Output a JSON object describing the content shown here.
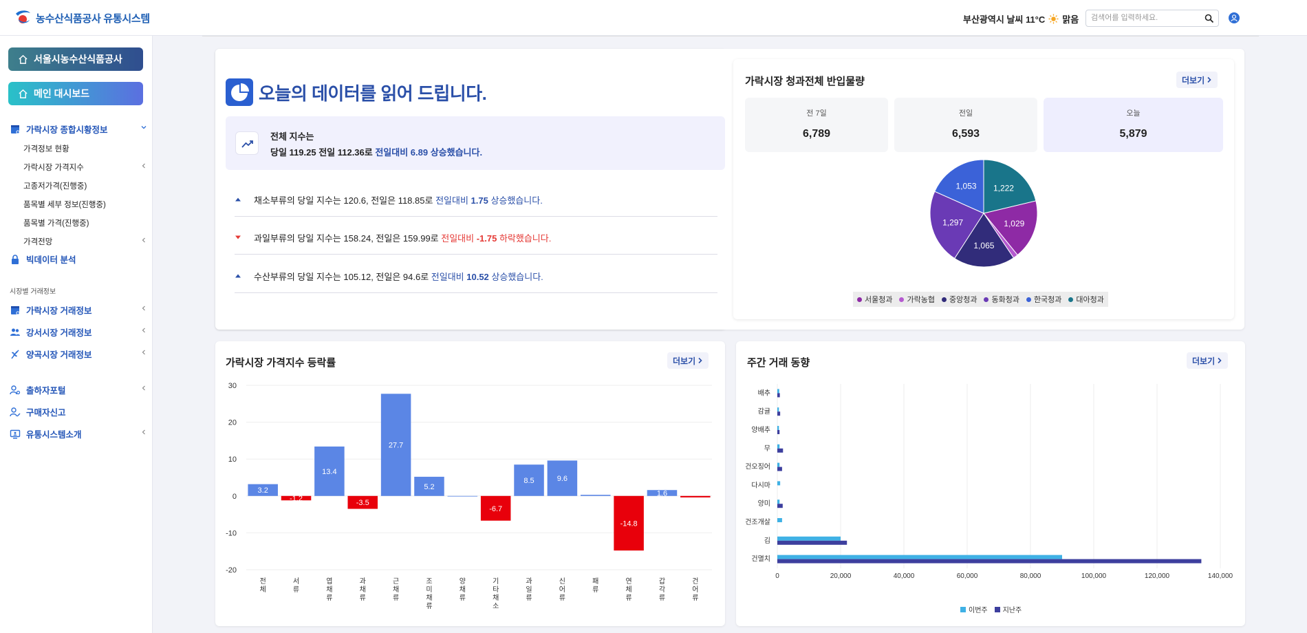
{
  "header": {
    "logo_text": "농수산식품공사 유통시스템",
    "weather": "부산광역시 날씨 11°C",
    "weather_status": "맑음",
    "search_placeholder": "검색어를 입력하세요."
  },
  "sidebar": {
    "org_button": "서울시농수산식품공사",
    "main_button": "메인 대시보드",
    "market_info": {
      "label": "가락시장 종합시황정보",
      "items": [
        "가격정보 현황",
        "가락시장 가격지수",
        "고종저가격(진행중)",
        "품목별 세부 정보(진행중)",
        "품목별 가격(진행중)",
        "가격전망"
      ]
    },
    "bigdata": "빅데이터 분석",
    "section_label": "시장별 거래정보",
    "markets": [
      "가락시장 거래정보",
      "강서시장 거래정보",
      "양곡시장 거래정보"
    ],
    "bottom": [
      "출하자포털",
      "구매자신고",
      "유통시스템소개"
    ]
  },
  "summary": {
    "title": "오늘의 데이터를 읽어 드립니다.",
    "line1": "전체 지수는",
    "line2_prefix": "당일 119.25 전일 112.36로 ",
    "line2_highlight": "전일대비 6.89 상승했습니다.",
    "rows": [
      {
        "prefix": "채소부류의 당일 지수는 120.6, 전일은 118.85로 ",
        "hl_a": "전일대비 ",
        "hl_b": "1.75",
        "hl_c": " 상승했습니다.",
        "dir": "up"
      },
      {
        "prefix": "과일부류의 당일 지수는 158.24, 전일은 159.99로 ",
        "hl_a": "전일대비 ",
        "hl_b": "-1.75",
        "hl_c": " 하락했습니다.",
        "dir": "down"
      },
      {
        "prefix": "수산부류의 당일 지수는 105.12, 전일은 94.6로 ",
        "hl_a": "전일대비 ",
        "hl_b": "10.52",
        "hl_c": " 상승했습니다.",
        "dir": "up"
      }
    ]
  },
  "volume": {
    "title": "가락시장 청과전체 반입물량",
    "more": "더보기",
    "stats": [
      {
        "label": "전 7일",
        "value": "6,789"
      },
      {
        "label": "전일",
        "value": "6,593"
      },
      {
        "label": "오늘",
        "value": "5,879"
      }
    ]
  },
  "index_chart_panel": {
    "title": "가락시장 가격지수 등락률",
    "more": "더보기"
  },
  "weekly_panel": {
    "title": "주간 거래 동향",
    "more": "더보기"
  },
  "colors": {
    "bar_pos": "#5b86e5",
    "bar_neg": "#e8000b",
    "primary": "#2a4fa8",
    "this_week": "#3fb1e5",
    "last_week": "#3d3f9e"
  },
  "chart_data": [
    {
      "type": "pie",
      "series_names": [
        "서울청과",
        "가락농협",
        "중앙청과",
        "동화청과",
        "한국청과",
        "대아청과"
      ],
      "values": [
        1029,
        83,
        1065,
        1297,
        1053,
        1222
      ],
      "data_labels": [
        "1,029",
        "",
        "1,065",
        "1,297",
        "1,053",
        "1,222"
      ],
      "colors": [
        "#8e2aa5",
        "#b55ad0",
        "#312c7a",
        "#6a3ab5",
        "#3b62d8",
        "#19758a"
      ]
    },
    {
      "type": "bar",
      "categories": [
        "전체",
        "서류",
        "엽채류",
        "과채류",
        "근채류",
        "조미채류",
        "양채류",
        "기타채소",
        "과일류",
        "신어류",
        "패류",
        "연체류",
        "갑각류",
        "건어류"
      ],
      "values": [
        3.2,
        -1.2,
        13.4,
        -3.5,
        27.7,
        5.2,
        0,
        -6.7,
        8.5,
        9.6,
        0.3,
        -14.8,
        1.6,
        -0.4
      ],
      "data_labels": [
        "3.2",
        "-1.2",
        "13.4",
        "-3.5",
        "27.7",
        "5.2",
        "",
        "-6.7",
        "8.5",
        "9.6",
        "",
        "-14.8",
        "1.6",
        ""
      ],
      "ylim": [
        -20,
        30
      ],
      "yticks": [
        "30",
        "20",
        "10",
        "0",
        "-10",
        "-20"
      ],
      "grid": true
    },
    {
      "type": "bar",
      "orientation": "horizontal",
      "categories": [
        "배추",
        "감귤",
        "양배추",
        "무",
        "건오징어",
        "다시마",
        "양미",
        "건조개살",
        "김",
        "건멸치"
      ],
      "series": [
        {
          "name": "이번주",
          "values": [
            600,
            500,
            500,
            700,
            700,
            900,
            700,
            1500,
            20000,
            90000
          ]
        },
        {
          "name": "지난주",
          "values": [
            800,
            900,
            700,
            1800,
            1500,
            0,
            1700,
            0,
            22000,
            134000
          ]
        }
      ],
      "xlim": [
        0,
        140000
      ],
      "xticks": [
        "0",
        "20,000",
        "40,000",
        "60,000",
        "80,000",
        "100,000",
        "120,000",
        "140,000"
      ],
      "grid": true
    }
  ]
}
